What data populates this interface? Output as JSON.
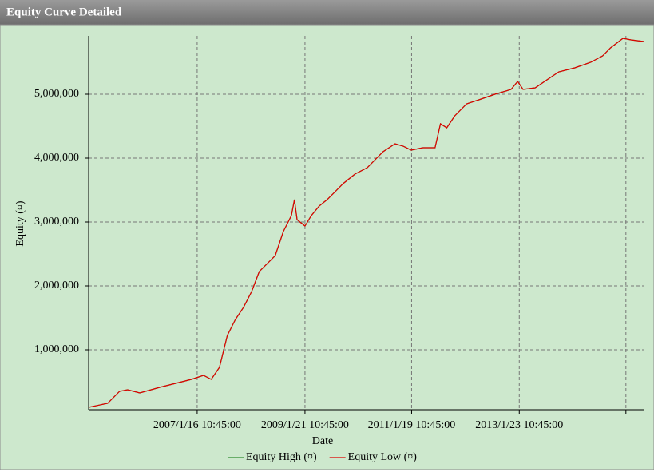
{
  "window_title": "Equity Curve Detailed",
  "chart_data": {
    "type": "line",
    "x_label": "Date",
    "y_label": "Equity (¤)",
    "xlim": [
      "2005/1/5 10:45:00",
      "2015/5/22 10:45:00"
    ],
    "xticks": [
      {
        "value": "2007/1/16 10:45:00",
        "label": "2007/1/16 10:45:00"
      },
      {
        "value": "2009/1/21 10:45:00",
        "label": "2009/1/21 10:45:00"
      },
      {
        "value": "2011/1/19 10:45:00",
        "label": "2011/1/19 10:45:00"
      },
      {
        "value": "2013/1/23 10:45:00",
        "label": "2013/1/23 10:45:00"
      },
      {
        "value": "2015/1/21 10:45:00",
        "label": null
      }
    ],
    "ylim": [
      62500,
      5912500
    ],
    "yticks": [
      {
        "value": 1000000,
        "label": "1,000,000"
      },
      {
        "value": 2000000,
        "label": "2,000,000"
      },
      {
        "value": 3000000,
        "label": "3,000,000"
      },
      {
        "value": 4000000,
        "label": "4,000,000"
      },
      {
        "value": 5000000,
        "label": "5,000,000"
      }
    ],
    "grid": true,
    "legend": "bottom",
    "x": [
      "2005/1/5 10:45:00",
      "2005/5/15 10:45:00",
      "2005/8/4 10:45:00",
      "2005/9/28 10:45:00",
      "2005/12/20 10:45:00",
      "2006/5/5 10:45:00",
      "2006/8/22 10:45:00",
      "2006/12/8 10:45:00",
      "2007/2/28 10:45:00",
      "2007/4/22 10:45:00",
      "2007/6/17 10:45:00",
      "2007/8/10 10:45:00",
      "2007/10/4 10:45:00",
      "2007/11/28 10:45:00",
      "2008/1/23 10:45:00",
      "2008/3/15 10:45:00",
      "2008/5/9 10:45:00",
      "2008/7/2 10:45:00",
      "2008/8/26 10:45:00",
      "2008/10/20 10:45:00",
      "2008/11/10 10:45:00",
      "2008/11/28 10:45:00",
      "2009/1/21 10:45:00",
      "2009/3/5 10:45:00",
      "2009/4/28 10:45:00",
      "2009/6/21 10:45:00",
      "2009/8/15 10:45:00",
      "2009/10/8 10:45:00",
      "2009/12/28 10:45:00",
      "2010/3/22 10:45:00",
      "2010/5/15 10:45:00",
      "2010/7/8 10:45:00",
      "2010/9/28 10:45:00",
      "2010/11/22 10:45:00",
      "2011/1/16 10:45:00",
      "2011/4/6 10:45:00",
      "2011/6/28 10:45:00",
      "2011/8/4 10:45:00",
      "2011/9/16 10:45:00",
      "2011/11/10 10:45:00",
      "2012/1/30 10:45:00",
      "2012/4/22 10:45:00",
      "2012/8/10 10:45:00",
      "2012/11/28 10:45:00",
      "2013/1/12 10:45:00",
      "2013/2/18 10:45:00",
      "2013/5/12 10:45:00",
      "2013/7/31 10:45:00",
      "2013/10/20 10:45:00",
      "2014/2/6 10:45:00",
      "2014/5/26 10:45:00",
      "2014/8/15 10:45:00",
      "2014/10/8 10:45:00",
      "2015/1/1 10:45:00",
      "2015/2/25 10:45:00",
      "2015/5/22 10:45:00"
    ],
    "series": [
      {
        "name": "Equity High (¤)",
        "color": "#2e8b2e",
        "values": [
          100000,
          162500,
          350000,
          375000,
          325000,
          412500,
          475000,
          537500,
          600000,
          537500,
          725000,
          1225000,
          1475000,
          1662500,
          1912500,
          2225000,
          2350000,
          2475000,
          2850000,
          3100000,
          3350000,
          3037500,
          2937500,
          3100000,
          3250000,
          3350000,
          3475000,
          3600000,
          3750000,
          3850000,
          3975000,
          4100000,
          4225000,
          4187500,
          4125000,
          4162500,
          4162500,
          4537500,
          4475000,
          4662500,
          4850000,
          4912500,
          5000000,
          5075000,
          5200000,
          5075000,
          5100000,
          5225000,
          5350000,
          5412500,
          5500000,
          5600000,
          5725000,
          5875000,
          5850000,
          5825000
        ]
      },
      {
        "name": "Equity Low (¤)",
        "color": "#e00000",
        "values": [
          100000,
          162500,
          350000,
          375000,
          325000,
          412500,
          475000,
          537500,
          600000,
          537500,
          725000,
          1225000,
          1475000,
          1662500,
          1912500,
          2225000,
          2350000,
          2475000,
          2850000,
          3100000,
          3350000,
          3037500,
          2937500,
          3100000,
          3250000,
          3350000,
          3475000,
          3600000,
          3750000,
          3850000,
          3975000,
          4100000,
          4225000,
          4187500,
          4125000,
          4162500,
          4162500,
          4537500,
          4475000,
          4662500,
          4850000,
          4912500,
          5000000,
          5075000,
          5200000,
          5075000,
          5100000,
          5225000,
          5350000,
          5412500,
          5500000,
          5600000,
          5725000,
          5875000,
          5850000,
          5825000
        ]
      }
    ]
  }
}
